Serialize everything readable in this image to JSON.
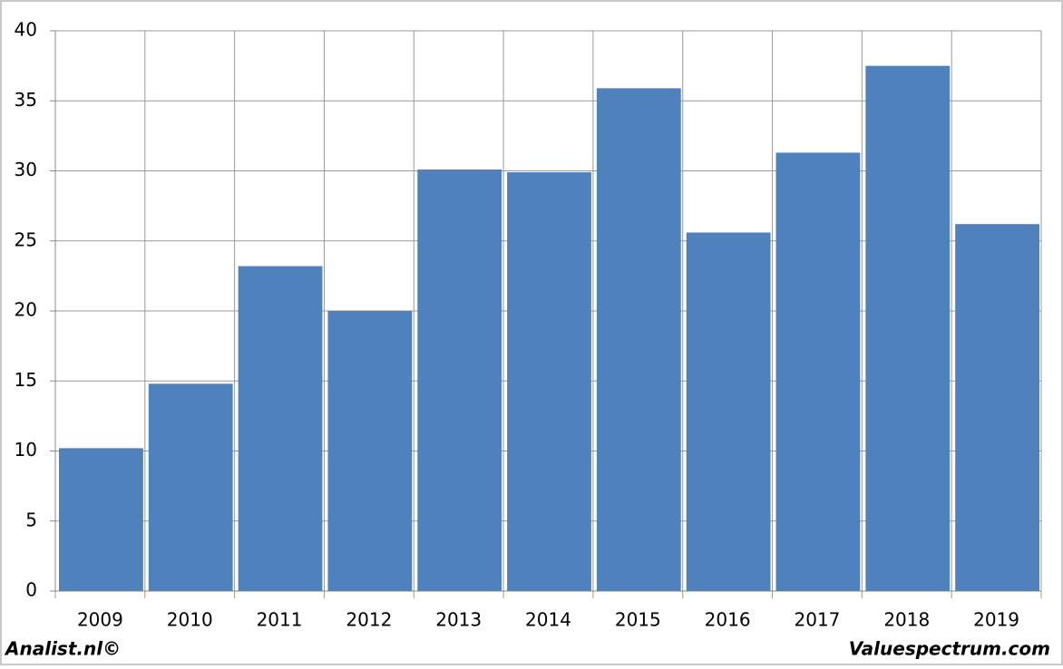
{
  "chart_data": {
    "type": "bar",
    "categories": [
      "2009",
      "2010",
      "2011",
      "2012",
      "2013",
      "2014",
      "2015",
      "2016",
      "2017",
      "2018",
      "2019"
    ],
    "values": [
      10.2,
      14.8,
      23.2,
      20.0,
      30.1,
      29.9,
      35.9,
      25.6,
      31.3,
      37.5,
      26.2
    ],
    "color": "#4f81bd",
    "ylim": [
      0,
      40
    ],
    "yticks": [
      0,
      5,
      10,
      15,
      20,
      25,
      30,
      35,
      40
    ],
    "grid": true,
    "annotations": [
      "Analist.nl©",
      "Valuespectrum.com"
    ]
  }
}
